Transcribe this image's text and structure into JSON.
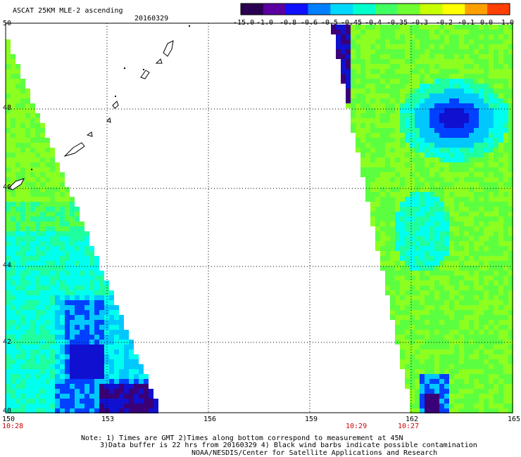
{
  "header": {
    "title": "ASCAT 25KM MLE-2 ascending",
    "date": "20160329"
  },
  "colorbar": {
    "labels": [
      "-15.0",
      "-1.0",
      "-0.8",
      "-0.6",
      "-0.5",
      "-0.45",
      "-0.4",
      "-0.35",
      "-0.3",
      "-0.2",
      "-0.1",
      "0.0",
      "1.0"
    ],
    "colors": [
      "#2a0050",
      "#5a00a0",
      "#1010ff",
      "#0080ff",
      "#00d8ff",
      "#00ffcc",
      "#40ff60",
      "#70ff30",
      "#c8ff00",
      "#ffff00",
      "#ffa000",
      "#ff4000"
    ]
  },
  "map": {
    "lon_labels": [
      "150",
      "153",
      "156",
      "159",
      "162",
      "165"
    ],
    "lat_labels": [
      "50",
      "48",
      "46",
      "44",
      "42",
      "40"
    ],
    "lon_range": [
      150,
      165
    ],
    "lat_range": [
      40,
      50
    ],
    "time_labels": [
      {
        "lon": "150",
        "time": "10:28"
      },
      {
        "lon": "160.3",
        "time": "10:29"
      },
      {
        "lon": "161.5",
        "time": "10:27"
      }
    ]
  },
  "footer": {
    "line1": "Note: 1) Times are GMT 2)Times along bottom correspond to measurement at 45N",
    "line2": "3)Data buffer is 22 hrs from 20160329 4) Black wind barbs indicate possible contamination",
    "line3": "NOAA/NESDIS/Center for Satellite Applications and Research"
  }
}
